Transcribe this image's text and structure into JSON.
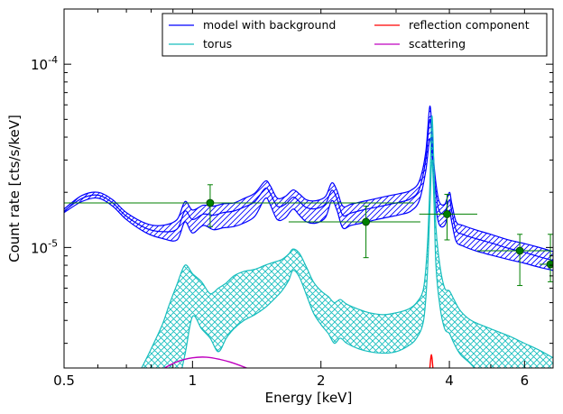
{
  "chart_data": {
    "type": "line",
    "xlabel": "Energy [keV]",
    "ylabel": "Count rate [cts/s/keV]",
    "xscale": "log",
    "yscale": "log",
    "xlim": [
      0.5,
      7.0
    ],
    "ylim": [
      2.2e-06,
      0.0002
    ],
    "x_ticks": [
      {
        "value": 0.5,
        "label": "0.5"
      },
      {
        "value": 1,
        "label": "1"
      },
      {
        "value": 2,
        "label": "2"
      },
      {
        "value": 4,
        "label": "4"
      },
      {
        "value": 6,
        "label": "6"
      }
    ],
    "y_ticks": [
      {
        "value": 1e-05,
        "base": "10",
        "exp": "-5"
      },
      {
        "value": 0.0001,
        "base": "10",
        "exp": "-4"
      }
    ],
    "grid": false,
    "legend_position": "top-right",
    "colors": {
      "model": "#0000ff",
      "torus": "#17bebe",
      "reflection": "#ff0000",
      "scattering": "#bf00bf",
      "data": "#007f00"
    },
    "legend": [
      {
        "label": "model with background",
        "color": "#0000ff"
      },
      {
        "label": "torus",
        "color": "#17bebe"
      },
      {
        "label": "reflection component",
        "color": "#ff0000"
      },
      {
        "label": "scattering",
        "color": "#bf00bf"
      }
    ],
    "series": [
      {
        "name": "model with background",
        "color": "#0000ff",
        "band": true,
        "x": [
          0.5,
          0.55,
          0.6,
          0.65,
          0.7,
          0.78,
          0.85,
          0.92,
          0.96,
          1.0,
          1.06,
          1.12,
          1.18,
          1.25,
          1.32,
          1.4,
          1.48,
          1.52,
          1.58,
          1.65,
          1.72,
          1.78,
          1.85,
          1.95,
          2.05,
          2.12,
          2.18,
          2.25,
          2.35,
          2.5,
          2.7,
          2.9,
          3.1,
          3.25,
          3.4,
          3.52,
          3.6,
          3.65,
          3.7,
          3.78,
          3.9,
          4.0,
          4.05,
          4.15,
          4.3,
          4.6,
          5.0,
          5.5,
          6.0,
          6.5,
          7.0
        ],
        "upper": [
          1.62e-05,
          1.92e-05,
          2e-05,
          1.82e-05,
          1.55e-05,
          1.35e-05,
          1.32e-05,
          1.42e-05,
          1.78e-05,
          1.6e-05,
          1.7e-05,
          1.68e-05,
          1.73e-05,
          1.75e-05,
          1.85e-05,
          1.98e-05,
          2.3e-05,
          2.18e-05,
          1.86e-05,
          1.9e-05,
          2.06e-05,
          1.96e-05,
          1.82e-05,
          1.8e-05,
          1.9e-05,
          2.25e-05,
          2.05e-05,
          1.68e-05,
          1.72e-05,
          1.78e-05,
          1.85e-05,
          1.92e-05,
          1.98e-05,
          2.05e-05,
          2.3e-05,
          3.3e-05,
          5.9e-05,
          3.8e-05,
          2.5e-05,
          1.8e-05,
          1.72e-05,
          2e-05,
          1.75e-05,
          1.38e-05,
          1.32e-05,
          1.25e-05,
          1.18e-05,
          1.1e-05,
          1.05e-05,
          1e-05,
          9.5e-06
        ],
        "mid": [
          1.58e-05,
          1.85e-05,
          1.93e-05,
          1.75e-05,
          1.48e-05,
          1.27e-05,
          1.22e-05,
          1.26e-05,
          1.58e-05,
          1.42e-05,
          1.52e-05,
          1.5e-05,
          1.55e-05,
          1.58e-05,
          1.66e-05,
          1.78e-05,
          2.1e-05,
          1.98e-05,
          1.68e-05,
          1.72e-05,
          1.88e-05,
          1.78e-05,
          1.65e-05,
          1.63e-05,
          1.73e-05,
          2.05e-05,
          1.85e-05,
          1.5e-05,
          1.54e-05,
          1.6e-05,
          1.66e-05,
          1.72e-05,
          1.78e-05,
          1.85e-05,
          2.08e-05,
          3e-05,
          5e-05,
          3.45e-05,
          2.2e-05,
          1.6e-05,
          1.55e-05,
          1.82e-05,
          1.58e-05,
          1.24e-05,
          1.18e-05,
          1.12e-05,
          1.06e-05,
          9.9e-06,
          9.4e-06,
          8.9e-06,
          8.5e-06
        ],
        "lower": [
          1.55e-05,
          1.78e-05,
          1.86e-05,
          1.68e-05,
          1.42e-05,
          1.2e-05,
          1.12e-05,
          1.1e-05,
          1.38e-05,
          1.2e-05,
          1.32e-05,
          1.25e-05,
          1.28e-05,
          1.3e-05,
          1.36e-05,
          1.48e-05,
          1.85e-05,
          1.72e-05,
          1.42e-05,
          1.45e-05,
          1.62e-05,
          1.5e-05,
          1.38e-05,
          1.36e-05,
          1.46e-05,
          1.8e-05,
          1.6e-05,
          1.28e-05,
          1.32e-05,
          1.36e-05,
          1.42e-05,
          1.47e-05,
          1.52e-05,
          1.58e-05,
          1.8e-05,
          2.6e-05,
          3.9e-05,
          2.95e-05,
          1.85e-05,
          1.35e-05,
          1.32e-05,
          1.6e-05,
          1.38e-05,
          1.08e-05,
          1.02e-05,
          9.6e-06,
          9.1e-06,
          8.6e-06,
          8.2e-06,
          7.8e-06,
          7.5e-06
        ]
      },
      {
        "name": "torus",
        "color": "#17bebe",
        "band": true,
        "x": [
          0.76,
          0.8,
          0.85,
          0.88,
          0.92,
          0.96,
          1.0,
          1.05,
          1.1,
          1.15,
          1.2,
          1.25,
          1.32,
          1.4,
          1.48,
          1.55,
          1.62,
          1.68,
          1.72,
          1.78,
          1.85,
          1.92,
          2.0,
          2.08,
          2.15,
          2.22,
          2.3,
          2.45,
          2.6,
          2.8,
          3.0,
          3.2,
          3.35,
          3.48,
          3.55,
          3.6,
          3.64,
          3.68,
          3.72,
          3.8,
          3.9,
          4.0,
          4.1,
          4.25,
          4.5,
          5.0,
          5.5,
          6.0,
          6.5,
          7.0
        ],
        "upper": [
          2.2e-06,
          2.8e-06,
          3.8e-06,
          4.8e-06,
          6.3e-06,
          8e-06,
          7.2e-06,
          6.5e-06,
          5.6e-06,
          6e-06,
          6.4e-06,
          7e-06,
          7.4e-06,
          7.6e-06,
          8e-06,
          8.3e-06,
          8.6e-06,
          9.2e-06,
          9.8e-06,
          9.3e-06,
          7.8e-06,
          6.5e-06,
          5.8e-06,
          5.4e-06,
          5e-06,
          5.2e-06,
          4.9e-06,
          4.6e-06,
          4.4e-06,
          4.3e-06,
          4.4e-06,
          4.6e-06,
          5e-06,
          6e-06,
          1e-05,
          2.2e-05,
          5.2e-05,
          2.8e-05,
          1.3e-05,
          8e-06,
          6e-06,
          5.8e-06,
          5.2e-06,
          4.5e-06,
          4e-06,
          3.6e-06,
          3.3e-06,
          3e-06,
          2.75e-06,
          2.5e-06
        ],
        "lower": [
          null,
          null,
          null,
          null,
          null,
          2.6e-06,
          4.2e-06,
          3.6e-06,
          3.2e-06,
          2.7e-06,
          3.2e-06,
          3.6e-06,
          4e-06,
          4.3e-06,
          4.7e-06,
          5.2e-06,
          5.8e-06,
          6.6e-06,
          7.5e-06,
          6.9e-06,
          5.5e-06,
          4.4e-06,
          3.8e-06,
          3.4e-06,
          3e-06,
          3.2e-06,
          3e-06,
          2.8e-06,
          2.7e-06,
          2.65e-06,
          2.7e-06,
          2.9e-06,
          3.2e-06,
          4e-06,
          7e-06,
          1.6e-05,
          3e-05,
          1.8e-05,
          8e-06,
          4.8e-06,
          3.6e-06,
          3.4e-06,
          3e-06,
          2.6e-06,
          2.3e-06,
          null,
          null,
          null,
          null,
          null
        ]
      },
      {
        "name": "reflection component",
        "color": "#ff0000",
        "band": false,
        "x": [
          3.6,
          3.63,
          3.66
        ],
        "y": [
          2.2e-06,
          2.6e-06,
          2.2e-06
        ]
      },
      {
        "name": "scattering",
        "color": "#bf00bf",
        "band": false,
        "x": [
          0.86,
          0.92,
          1.0,
          1.08,
          1.16,
          1.24,
          1.34
        ],
        "y": [
          2.2e-06,
          2.38e-06,
          2.5e-06,
          2.52e-06,
          2.45e-06,
          2.35e-06,
          2.2e-06
        ]
      }
    ],
    "data_points": [
      {
        "x": 1.1,
        "y": 1.75e-05,
        "xerr": [
          0.5,
          3.3
        ],
        "yerr": [
          1.3e-05,
          2.2e-05
        ]
      },
      {
        "x": 2.55,
        "y": 1.38e-05,
        "xerr": [
          1.68,
          3.42
        ],
        "yerr": [
          8.8e-06,
          1.68e-05
        ]
      },
      {
        "x": 3.95,
        "y": 1.52e-05,
        "xerr": [
          3.4,
          4.65
        ],
        "yerr": [
          1.1e-05,
          1.95e-05
        ]
      },
      {
        "x": 5.85,
        "y": 9.6e-06,
        "xerr": [
          4.65,
          6.9
        ],
        "yerr": [
          6.2e-06,
          1.18e-05
        ]
      },
      {
        "x": 6.9,
        "y": 8.1e-06,
        "xerr": [
          6.5,
          7.0
        ],
        "yerr": [
          6.5e-06,
          1.18e-05
        ]
      }
    ]
  }
}
